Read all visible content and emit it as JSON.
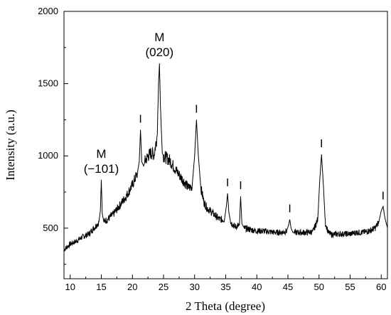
{
  "chart_data": {
    "type": "line",
    "title": "",
    "xlabel": "2 Theta (degree)",
    "ylabel": "Intensity (a.u.)",
    "xlim": [
      9,
      61
    ],
    "ylim": [
      150,
      2000
    ],
    "xticks": [
      10,
      15,
      20,
      25,
      30,
      35,
      40,
      45,
      50,
      55,
      60
    ],
    "yticks": [
      500,
      1000,
      1500,
      2000
    ],
    "grid": false,
    "legend": "none",
    "colors": {
      "line": "#000000",
      "axis": "#000000",
      "background": "#ffffff"
    },
    "series": [
      {
        "x": [
          9.0,
          10.0,
          11.0,
          12.0,
          13.0,
          14.0,
          14.6,
          14.85,
          15.0,
          15.15,
          15.4,
          16.0,
          17.0,
          18.0,
          19.0,
          20.0,
          20.8,
          21.1,
          21.3,
          21.5,
          21.8,
          22.0,
          22.5,
          23.0,
          23.5,
          24.0,
          24.2,
          24.35,
          24.5,
          24.8,
          25.0,
          26.0,
          27.0,
          28.0,
          29.0,
          29.6,
          30.0,
          30.3,
          30.6,
          31.0,
          31.5,
          32.0,
          33.0,
          34.0,
          34.8,
          35.1,
          35.3,
          35.5,
          35.8,
          36.5,
          37.2,
          37.4,
          37.6,
          38.0,
          39.0,
          40.0,
          41.0,
          42.0,
          43.0,
          44.0,
          44.8,
          45.1,
          45.3,
          45.5,
          45.8,
          46.0,
          47.0,
          48.0,
          49.0,
          49.8,
          50.1,
          50.4,
          50.7,
          51.0,
          51.5,
          52.0,
          53.0,
          54.0,
          55.0,
          56.0,
          57.0,
          58.0,
          59.0,
          59.6,
          60.0,
          60.3,
          60.6,
          61.0
        ],
        "y": [
          350,
          390,
          410,
          440,
          460,
          510,
          540,
          620,
          835,
          600,
          545,
          560,
          600,
          660,
          720,
          800,
          880,
          960,
          1180,
          960,
          930,
          960,
          1000,
          1020,
          1010,
          1150,
          1500,
          1640,
          1350,
          1020,
          1000,
          970,
          900,
          840,
          780,
          790,
          1000,
          1250,
          1000,
          780,
          680,
          640,
          600,
          560,
          560,
          650,
          740,
          610,
          540,
          510,
          520,
          720,
          530,
          500,
          490,
          480,
          480,
          475,
          470,
          470,
          480,
          520,
          560,
          500,
          470,
          470,
          470,
          470,
          475,
          560,
          820,
          1010,
          800,
          540,
          470,
          455,
          460,
          460,
          460,
          470,
          470,
          480,
          500,
          540,
          620,
          650,
          570,
          500
        ]
      }
    ],
    "annotations": [
      {
        "lines": [
          "M",
          "(−101)"
        ],
        "x": 15.0,
        "y": 835
      },
      {
        "lines": [
          "M",
          "(020)"
        ],
        "x": 24.35,
        "y": 1640
      },
      {
        "lines": [
          "I"
        ],
        "x": 21.3,
        "y": 1180
      },
      {
        "lines": [
          "I"
        ],
        "x": 30.3,
        "y": 1250
      },
      {
        "lines": [
          "I"
        ],
        "x": 35.3,
        "y": 740
      },
      {
        "lines": [
          "I"
        ],
        "x": 37.4,
        "y": 720
      },
      {
        "lines": [
          "I"
        ],
        "x": 45.3,
        "y": 560
      },
      {
        "lines": [
          "I"
        ],
        "x": 50.4,
        "y": 1010
      },
      {
        "lines": [
          "I"
        ],
        "x": 60.3,
        "y": 650
      }
    ]
  }
}
